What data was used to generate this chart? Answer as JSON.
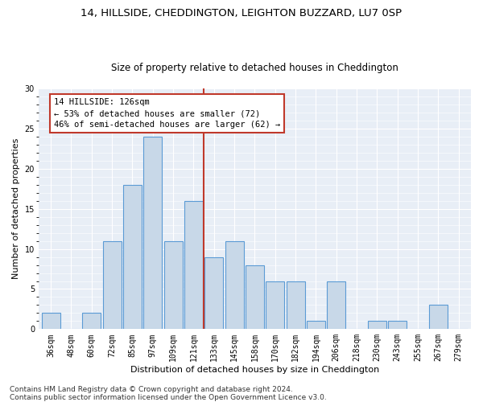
{
  "title1": "14, HILLSIDE, CHEDDINGTON, LEIGHTON BUZZARD, LU7 0SP",
  "title2": "Size of property relative to detached houses in Cheddington",
  "xlabel": "Distribution of detached houses by size in Cheddington",
  "ylabel": "Number of detached properties",
  "categories": [
    "36sqm",
    "48sqm",
    "60sqm",
    "72sqm",
    "85sqm",
    "97sqm",
    "109sqm",
    "121sqm",
    "133sqm",
    "145sqm",
    "158sqm",
    "170sqm",
    "182sqm",
    "194sqm",
    "206sqm",
    "218sqm",
    "230sqm",
    "243sqm",
    "255sqm",
    "267sqm",
    "279sqm"
  ],
  "values": [
    2,
    0,
    2,
    11,
    18,
    24,
    11,
    16,
    9,
    11,
    8,
    6,
    6,
    1,
    6,
    0,
    1,
    1,
    0,
    3,
    0
  ],
  "bar_color": "#c8d8e8",
  "bar_edge_color": "#5b9bd5",
  "vline_color": "#c0392b",
  "annotation_line1": "14 HILLSIDE: 126sqm",
  "annotation_line2": "← 53% of detached houses are smaller (72)",
  "annotation_line3": "46% of semi-detached houses are larger (62) →",
  "annotation_box_color": "#c0392b",
  "annotation_bg": "#ffffff",
  "footnote1": "Contains HM Land Registry data © Crown copyright and database right 2024.",
  "footnote2": "Contains public sector information licensed under the Open Government Licence v3.0.",
  "ylim": [
    0,
    30
  ],
  "plot_bg": "#e8eef6",
  "title1_fontsize": 9.5,
  "title2_fontsize": 8.5,
  "xlabel_fontsize": 8,
  "ylabel_fontsize": 8,
  "tick_fontsize": 7,
  "footnote_fontsize": 6.5,
  "annotation_fontsize": 7.5
}
